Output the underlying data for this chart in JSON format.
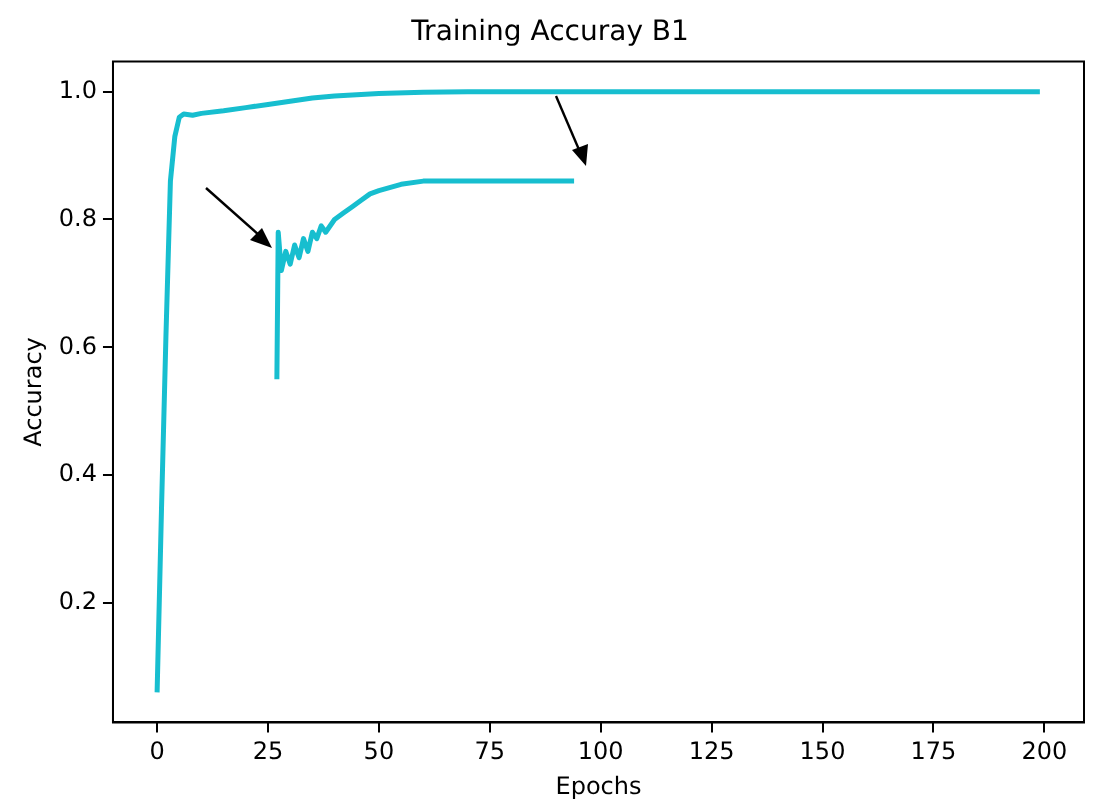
{
  "chart_data": {
    "type": "line",
    "title": "Training Accuray B1",
    "xlabel": "Epochs",
    "ylabel": "Accuracy",
    "xlim": [
      -9.95,
      208.95
    ],
    "ylim": [
      0.013,
      1.047
    ],
    "xticks": [
      0,
      25,
      50,
      75,
      100,
      125,
      150,
      175,
      200
    ],
    "yticks": [
      0.2,
      0.4,
      0.6,
      0.8,
      {
        "value": 1,
        "label": "1.0"
      }
    ],
    "grid": false,
    "legend": false,
    "marker": "none",
    "line_style": "solid",
    "series": [
      {
        "color": "#17becf",
        "x": [
          0,
          1,
          2,
          3,
          4,
          5,
          6,
          8,
          10,
          15,
          20,
          25,
          30,
          35,
          40,
          45,
          50,
          60,
          70,
          80,
          100,
          150,
          199
        ],
        "values": [
          0.06,
          0.35,
          0.62,
          0.86,
          0.93,
          0.96,
          0.965,
          0.963,
          0.966,
          0.97,
          0.975,
          0.98,
          0.985,
          0.99,
          0.993,
          0.995,
          0.997,
          0.999,
          1.0,
          1.0,
          1.0,
          1.0,
          1.0
        ]
      },
      {
        "color": "#17becf",
        "x": [
          27,
          27.3,
          28,
          29,
          30,
          31,
          32,
          33,
          34,
          35,
          36,
          37,
          38,
          40,
          42,
          44,
          46,
          48,
          50,
          55,
          60,
          70,
          80,
          94
        ],
        "values": [
          0.55,
          0.78,
          0.72,
          0.75,
          0.73,
          0.76,
          0.74,
          0.77,
          0.75,
          0.78,
          0.77,
          0.79,
          0.78,
          0.8,
          0.81,
          0.82,
          0.83,
          0.84,
          0.845,
          0.855,
          0.86,
          0.86,
          0.86,
          0.86
        ]
      }
    ]
  }
}
